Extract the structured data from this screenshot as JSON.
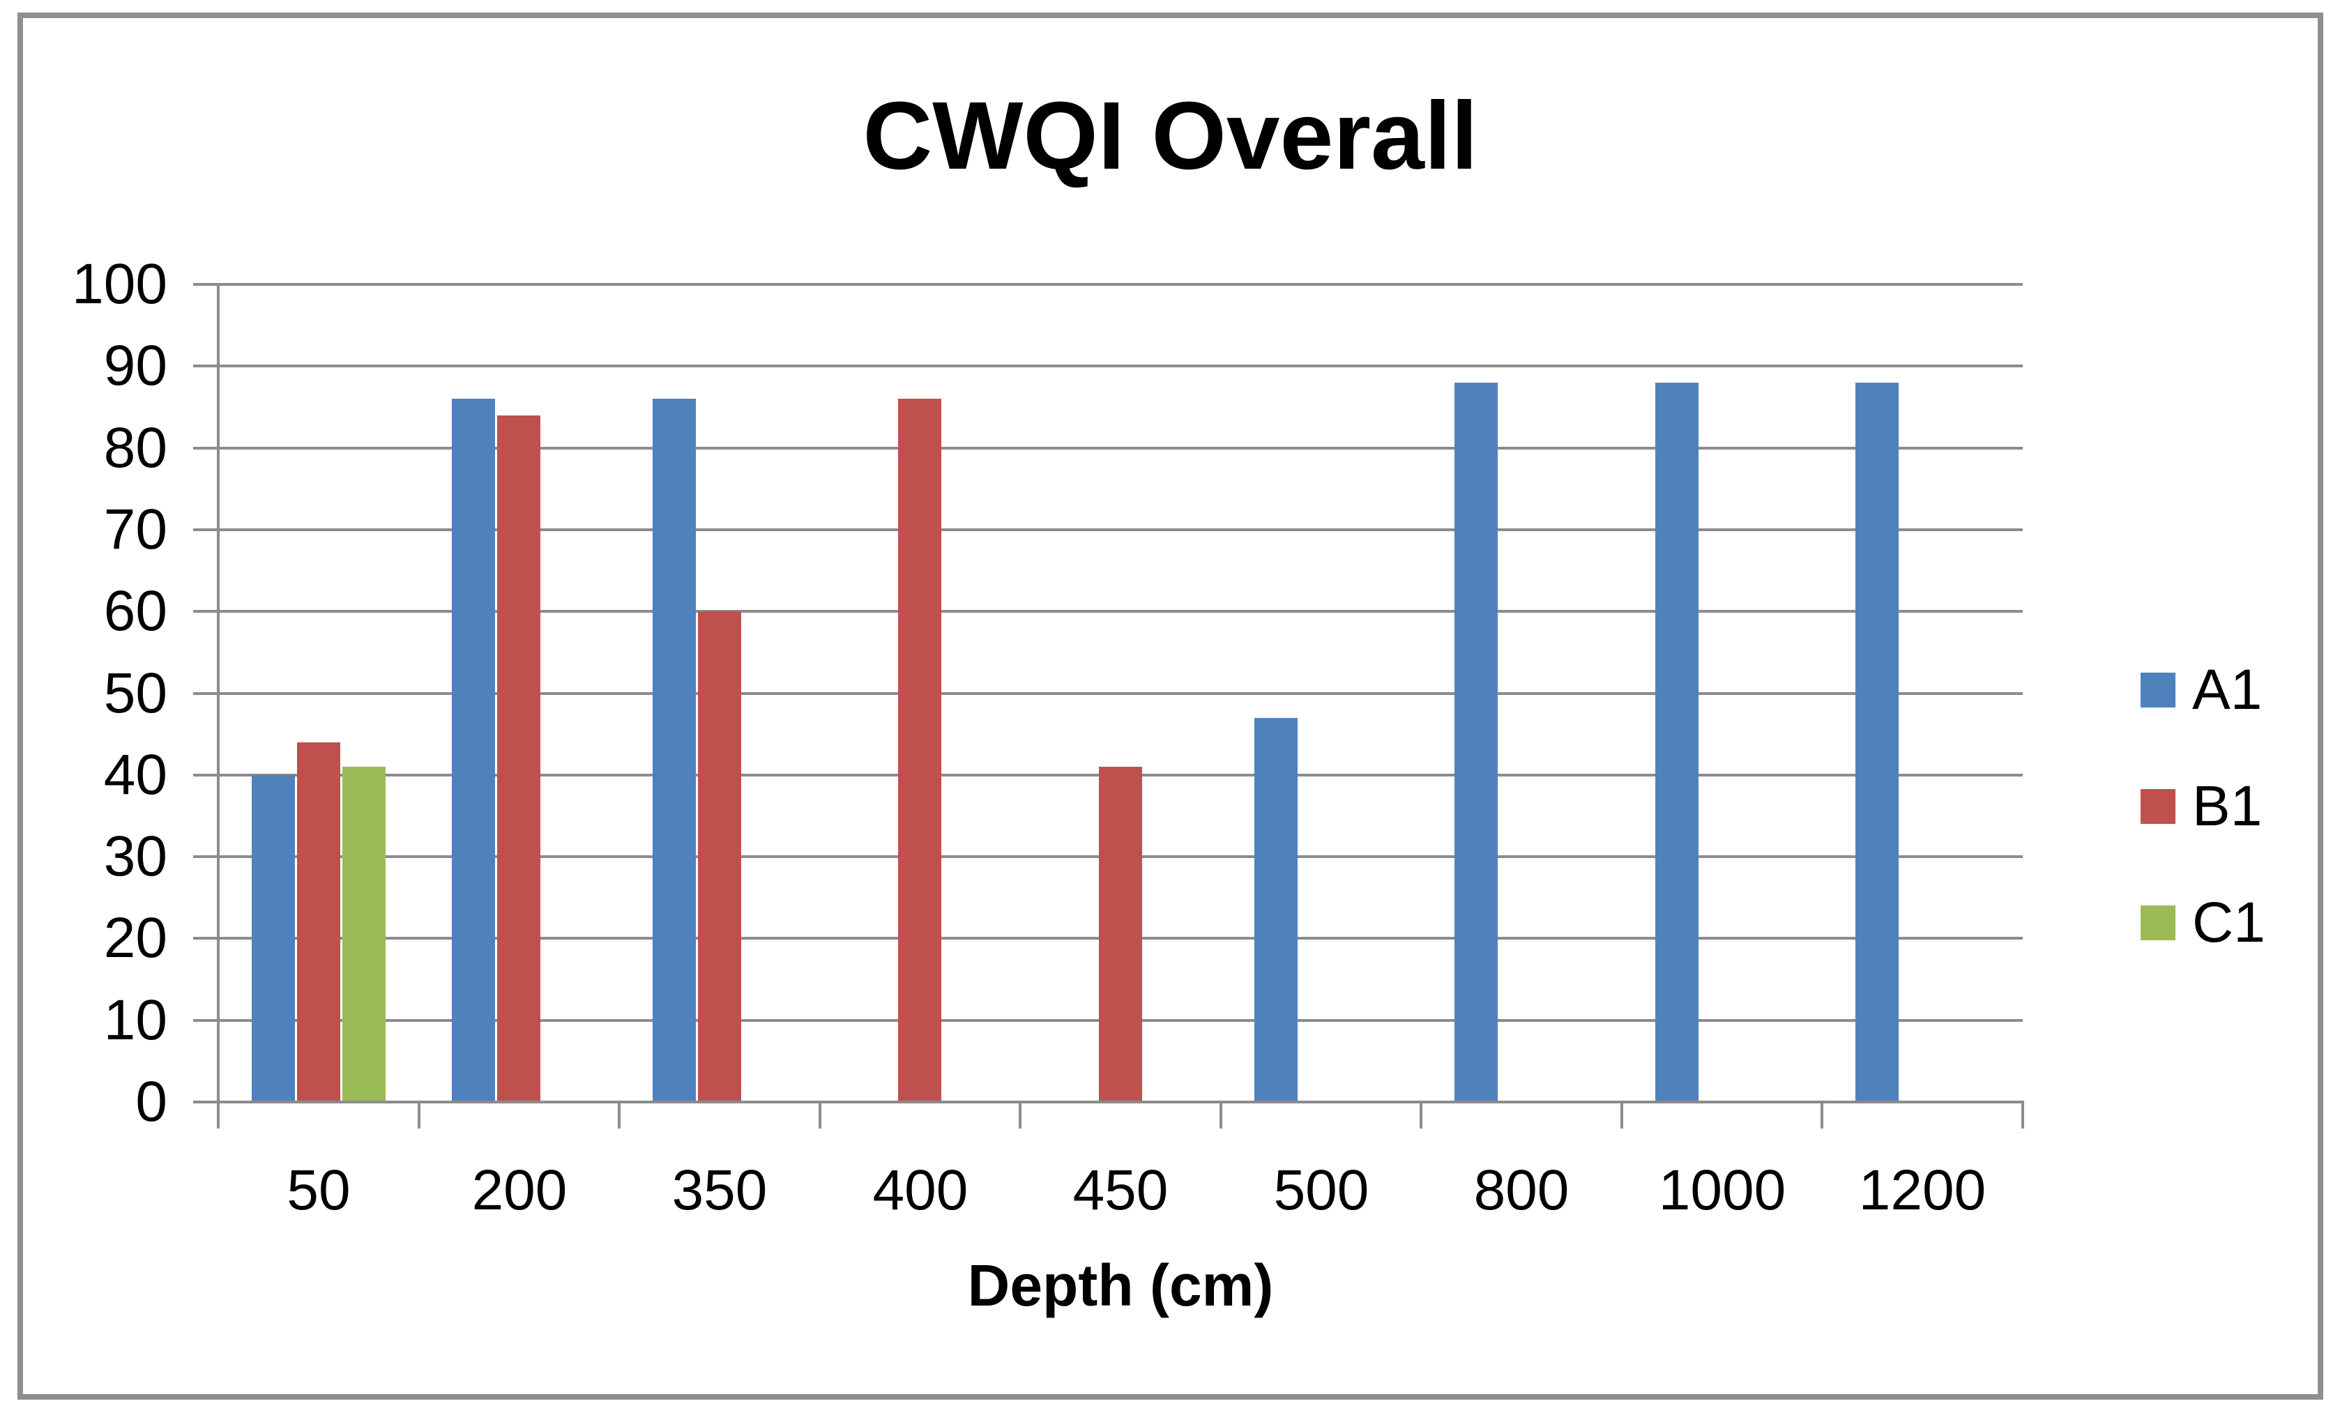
{
  "chart_data": {
    "type": "bar",
    "title": "CWQI Overall",
    "xlabel": "Depth (cm)",
    "ylabel": "",
    "ylim": [
      0,
      100
    ],
    "ytick_interval": 10,
    "yticks": [
      0,
      10,
      20,
      30,
      40,
      50,
      60,
      70,
      80,
      90,
      100
    ],
    "grid": true,
    "legend_position": "right",
    "categories": [
      "50",
      "200",
      "350",
      "400",
      "450",
      "500",
      "800",
      "1000",
      "1200"
    ],
    "series": [
      {
        "name": "A1",
        "color": "#4F81BD",
        "values": [
          40,
          86,
          86,
          null,
          null,
          47,
          88,
          88,
          88
        ]
      },
      {
        "name": "B1",
        "color": "#C0504D",
        "values": [
          44,
          84,
          60,
          86,
          41,
          null,
          null,
          null,
          null
        ]
      },
      {
        "name": "C1",
        "color": "#9BBB59",
        "values": [
          41,
          null,
          null,
          null,
          null,
          null,
          null,
          null,
          null
        ]
      }
    ],
    "colors": {
      "gridline": "#8C8C8C",
      "axis": "#8C8C8C",
      "frame": "#8F8F8F",
      "text": "#000000",
      "background": "#FFFFFF"
    }
  }
}
